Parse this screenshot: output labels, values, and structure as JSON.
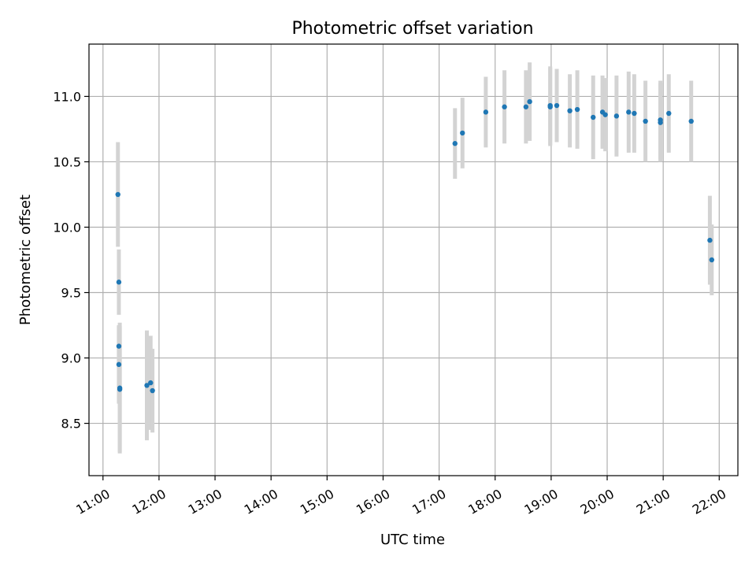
{
  "chart_data": {
    "type": "scatter",
    "title": "Photometric offset variation",
    "xlabel": "UTC time",
    "ylabel": "Photometric offset",
    "xlim": [
      "10:45",
      "22:20"
    ],
    "ylim": [
      8.1,
      11.4
    ],
    "x_ticks": [
      "11:00",
      "12:00",
      "13:00",
      "14:00",
      "15:00",
      "16:00",
      "17:00",
      "18:00",
      "19:00",
      "20:00",
      "21:00",
      "22:00"
    ],
    "y_ticks": [
      8.5,
      9.0,
      9.5,
      10.0,
      10.5,
      11.0
    ],
    "grid": true,
    "colors": {
      "point": "#1f77b4",
      "errorbar": "#d3d3d3",
      "grid": "#b0b0b0"
    },
    "series": [
      {
        "points": [
          {
            "x": "11:16",
            "y": 10.25,
            "yerr": 0.4
          },
          {
            "x": "11:17",
            "y": 9.58,
            "yerr": 0.25
          },
          {
            "x": "11:17",
            "y": 9.09,
            "yerr": 0.15
          },
          {
            "x": "11:17",
            "y": 8.95,
            "yerr": 0.3
          },
          {
            "x": "11:18",
            "y": 8.77,
            "yerr": 0.5
          },
          {
            "x": "11:18",
            "y": 8.76,
            "yerr": 0.48
          },
          {
            "x": "11:47",
            "y": 8.79,
            "yerr": 0.42
          },
          {
            "x": "11:51",
            "y": 8.81,
            "yerr": 0.36
          },
          {
            "x": "11:53",
            "y": 8.75,
            "yerr": 0.32
          },
          {
            "x": "17:17",
            "y": 10.64,
            "yerr": 0.27
          },
          {
            "x": "17:25",
            "y": 10.72,
            "yerr": 0.27
          },
          {
            "x": "17:50",
            "y": 10.88,
            "yerr": 0.27
          },
          {
            "x": "18:10",
            "y": 10.92,
            "yerr": 0.28
          },
          {
            "x": "18:33",
            "y": 10.92,
            "yerr": 0.28
          },
          {
            "x": "18:37",
            "y": 10.96,
            "yerr": 0.3
          },
          {
            "x": "18:59",
            "y": 10.93,
            "yerr": 0.3
          },
          {
            "x": "18:59",
            "y": 10.92,
            "yerr": 0.3
          },
          {
            "x": "19:06",
            "y": 10.93,
            "yerr": 0.28
          },
          {
            "x": "19:20",
            "y": 10.89,
            "yerr": 0.28
          },
          {
            "x": "19:28",
            "y": 10.9,
            "yerr": 0.3
          },
          {
            "x": "19:45",
            "y": 10.84,
            "yerr": 0.32
          },
          {
            "x": "19:55",
            "y": 10.88,
            "yerr": 0.28
          },
          {
            "x": "19:58",
            "y": 10.86,
            "yerr": 0.28
          },
          {
            "x": "20:10",
            "y": 10.85,
            "yerr": 0.31
          },
          {
            "x": "20:23",
            "y": 10.88,
            "yerr": 0.31
          },
          {
            "x": "20:29",
            "y": 10.87,
            "yerr": 0.3
          },
          {
            "x": "20:41",
            "y": 10.81,
            "yerr": 0.31
          },
          {
            "x": "20:57",
            "y": 10.8,
            "yerr": 0.3
          },
          {
            "x": "20:57",
            "y": 10.82,
            "yerr": 0.3
          },
          {
            "x": "21:06",
            "y": 10.87,
            "yerr": 0.3
          },
          {
            "x": "21:30",
            "y": 10.81,
            "yerr": 0.31
          },
          {
            "x": "21:50",
            "y": 9.9,
            "yerr": 0.34
          },
          {
            "x": "21:52",
            "y": 9.75,
            "yerr": 0.27
          }
        ]
      }
    ]
  }
}
